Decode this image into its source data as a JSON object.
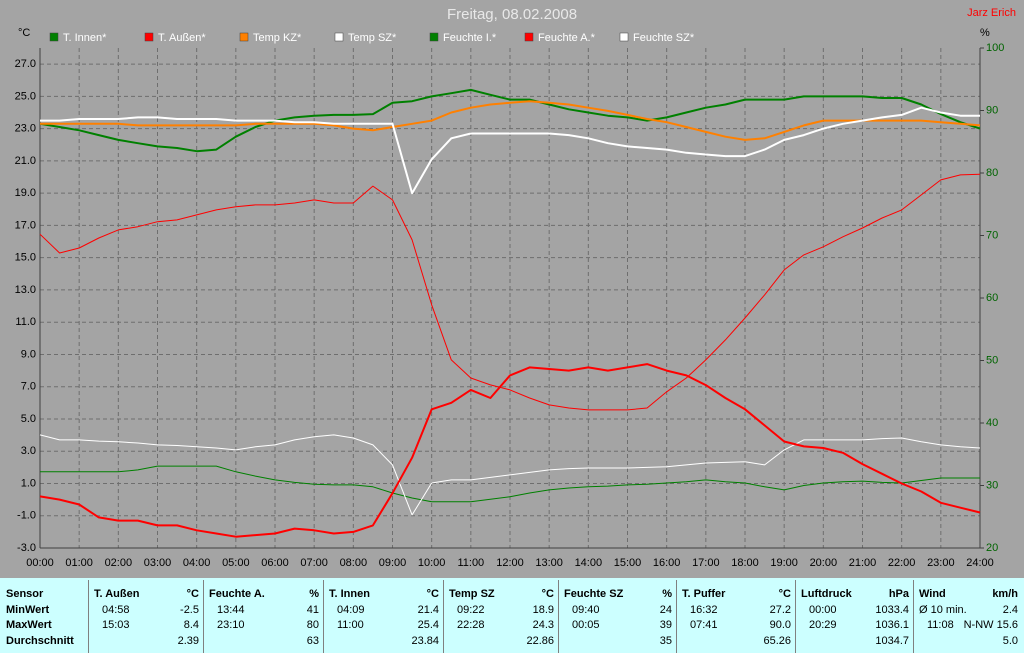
{
  "chart_data": {
    "type": "line",
    "title": "Freitag, 08.02.2008",
    "author": "Jarz Erich",
    "ylabel": "°C",
    "y2label": "%",
    "x": [
      0,
      0.5,
      1,
      1.5,
      2,
      2.5,
      3,
      3.5,
      4,
      4.5,
      5,
      5.5,
      6,
      6.5,
      7,
      7.5,
      8,
      8.5,
      9,
      9.5,
      10,
      10.5,
      11,
      11.5,
      12,
      12.5,
      13,
      13.5,
      14,
      14.5,
      15,
      15.5,
      16,
      16.5,
      17,
      17.5,
      18,
      18.5,
      19,
      19.5,
      20,
      20.5,
      21,
      21.5,
      22,
      22.5,
      23,
      23.5,
      24
    ],
    "xlim": [
      0,
      24
    ],
    "xticks": [
      {
        "value": 0,
        "label": "00:00"
      },
      {
        "value": 1,
        "label": "01:00"
      },
      {
        "value": 2,
        "label": "02:00"
      },
      {
        "value": 3,
        "label": "03:00"
      },
      {
        "value": 4,
        "label": "04:00"
      },
      {
        "value": 5,
        "label": "05:00"
      },
      {
        "value": 6,
        "label": "06:00"
      },
      {
        "value": 7,
        "label": "07:00"
      },
      {
        "value": 8,
        "label": "08:00"
      },
      {
        "value": 9,
        "label": "09:00"
      },
      {
        "value": 10,
        "label": "10:00"
      },
      {
        "value": 11,
        "label": "11:00"
      },
      {
        "value": 12,
        "label": "12:00"
      },
      {
        "value": 13,
        "label": "13:00"
      },
      {
        "value": 14,
        "label": "14:00"
      },
      {
        "value": 15,
        "label": "15:00"
      },
      {
        "value": 16,
        "label": "16:00"
      },
      {
        "value": 17,
        "label": "17:00"
      },
      {
        "value": 18,
        "label": "18:00"
      },
      {
        "value": 19,
        "label": "19:00"
      },
      {
        "value": 20,
        "label": "20:00"
      },
      {
        "value": 21,
        "label": "21:00"
      },
      {
        "value": 22,
        "label": "22:00"
      },
      {
        "value": 23,
        "label": "23:00"
      },
      {
        "value": 24,
        "label": "24:00"
      }
    ],
    "ylim": [
      -3,
      28
    ],
    "yticks": [
      {
        "value": -3,
        "label": "-3.0"
      },
      {
        "value": -1,
        "label": "-1.0"
      },
      {
        "value": 1,
        "label": "1.0"
      },
      {
        "value": 3,
        "label": "3.0"
      },
      {
        "value": 5,
        "label": "5.0"
      },
      {
        "value": 7,
        "label": "7.0"
      },
      {
        "value": 9,
        "label": "9.0"
      },
      {
        "value": 11,
        "label": "11.0"
      },
      {
        "value": 13,
        "label": "13.0"
      },
      {
        "value": 15,
        "label": "15.0"
      },
      {
        "value": 17,
        "label": "17.0"
      },
      {
        "value": 19,
        "label": "19.0"
      },
      {
        "value": 21,
        "label": "21.0"
      },
      {
        "value": 23,
        "label": "23.0"
      },
      {
        "value": 25,
        "label": "25.0"
      },
      {
        "value": 27,
        "label": "27.0"
      }
    ],
    "y2lim": [
      20,
      100
    ],
    "y2ticks": [
      20,
      30,
      40,
      50,
      60,
      70,
      80,
      90,
      100
    ],
    "grid": true,
    "series": [
      {
        "name": "T. Innen*",
        "color": "#008000",
        "line_width": 2,
        "values": [
          23.3,
          23.1,
          22.9,
          22.6,
          22.3,
          22.1,
          21.9,
          21.8,
          21.6,
          21.7,
          22.5,
          23.1,
          23.5,
          23.7,
          23.8,
          23.85,
          23.85,
          23.9,
          24.6,
          24.7,
          25.0,
          25.2,
          25.4,
          25.1,
          24.8,
          24.8,
          24.5,
          24.2,
          24.0,
          23.8,
          23.7,
          23.5,
          23.7,
          24.0,
          24.3,
          24.5,
          24.8,
          24.8,
          24.8,
          25.0,
          25.0,
          25.0,
          25.0,
          24.9,
          24.9,
          24.5,
          23.9,
          23.4,
          23.0
        ]
      },
      {
        "name": "T. Außen*",
        "color": "#ff0000",
        "line_width": 2,
        "values": [
          0.2,
          0.0,
          -0.3,
          -1.1,
          -1.3,
          -1.3,
          -1.6,
          -1.6,
          -1.9,
          -2.1,
          -2.3,
          -2.2,
          -2.1,
          -1.8,
          -1.9,
          -2.1,
          -2.0,
          -1.6,
          0.4,
          2.6,
          5.6,
          6.0,
          6.8,
          6.3,
          7.7,
          8.2,
          8.1,
          8.0,
          8.2,
          8.0,
          8.2,
          8.4,
          8.0,
          7.7,
          7.1,
          6.3,
          5.6,
          4.6,
          3.6,
          3.3,
          3.2,
          2.9,
          2.2,
          1.6,
          1.0,
          0.5,
          -0.2,
          -0.5,
          -0.8
        ]
      },
      {
        "name": "Temp KZ*",
        "color": "#ff8000",
        "line_width": 2,
        "values": [
          23.3,
          23.3,
          23.3,
          23.3,
          23.3,
          23.2,
          23.2,
          23.2,
          23.2,
          23.2,
          23.2,
          23.3,
          23.3,
          23.3,
          23.3,
          23.2,
          23.0,
          22.9,
          23.1,
          23.3,
          23.5,
          24.0,
          24.3,
          24.5,
          24.6,
          24.7,
          24.6,
          24.5,
          24.3,
          24.1,
          23.85,
          23.6,
          23.4,
          23.1,
          22.8,
          22.5,
          22.3,
          22.4,
          22.8,
          23.2,
          23.5,
          23.5,
          23.5,
          23.5,
          23.5,
          23.5,
          23.4,
          23.3,
          23.2
        ]
      },
      {
        "name": "Temp SZ*",
        "color": "#ffffff",
        "line_width": 2,
        "values": [
          23.5,
          23.5,
          23.6,
          23.6,
          23.6,
          23.7,
          23.7,
          23.6,
          23.6,
          23.6,
          23.5,
          23.5,
          23.5,
          23.4,
          23.4,
          23.3,
          23.3,
          23.3,
          23.3,
          19.0,
          21.1,
          22.4,
          22.7,
          22.7,
          22.7,
          22.7,
          22.7,
          22.6,
          22.4,
          22.1,
          21.9,
          21.8,
          21.7,
          21.5,
          21.4,
          21.3,
          21.3,
          21.7,
          22.3,
          22.6,
          23.0,
          23.3,
          23.5,
          23.7,
          23.85,
          24.3,
          24.0,
          23.8,
          23.8
        ]
      },
      {
        "name": "Feuchte I.*",
        "color": "#008000",
        "line_width": 1,
        "axis": "y2",
        "values": [
          32.2,
          32.2,
          32.2,
          32.2,
          32.2,
          32.5,
          33.1,
          33.1,
          33.1,
          33.1,
          32.2,
          31.5,
          30.9,
          30.5,
          30.2,
          30.1,
          30.1,
          29.8,
          28.8,
          28.0,
          27.4,
          27.4,
          27.4,
          27.8,
          28.2,
          28.8,
          29.3,
          29.6,
          29.8,
          29.9,
          30.1,
          30.2,
          30.4,
          30.6,
          30.9,
          30.6,
          30.4,
          29.8,
          29.3,
          30.0,
          30.4,
          30.6,
          30.7,
          30.5,
          30.4,
          30.8,
          31.2,
          31.2,
          31.2
        ]
      },
      {
        "name": "Feuchte A.*",
        "color": "#ff0000",
        "line_width": 1,
        "axis": "y2",
        "values": [
          70.2,
          67.2,
          68.0,
          69.6,
          70.9,
          71.4,
          72.2,
          72.5,
          73.3,
          74.1,
          74.6,
          74.9,
          74.9,
          75.2,
          75.7,
          75.2,
          75.2,
          77.9,
          75.7,
          69.3,
          58.9,
          50.1,
          47.2,
          46.1,
          45.3,
          44.0,
          42.9,
          42.4,
          42.1,
          42.1,
          42.1,
          42.4,
          45.0,
          47.2,
          50.1,
          53.3,
          56.8,
          60.5,
          64.5,
          66.9,
          68.2,
          69.8,
          71.2,
          72.8,
          74.1,
          76.5,
          78.9,
          79.7,
          79.8
        ]
      },
      {
        "name": "Feuchte SZ*",
        "color": "#ffffff",
        "line_width": 1,
        "axis": "y2",
        "values": [
          38.1,
          37.3,
          37.3,
          37.1,
          37.0,
          36.8,
          36.5,
          36.4,
          36.2,
          36.0,
          35.7,
          36.2,
          36.5,
          37.3,
          37.8,
          38.1,
          37.6,
          36.5,
          33.3,
          25.3,
          30.4,
          30.9,
          30.9,
          31.3,
          31.7,
          32.1,
          32.5,
          32.7,
          32.8,
          32.8,
          32.8,
          32.9,
          33.0,
          33.3,
          33.6,
          33.7,
          33.8,
          33.3,
          35.7,
          37.3,
          37.3,
          37.3,
          37.3,
          37.5,
          37.6,
          37.0,
          36.5,
          36.2,
          36.0
        ]
      }
    ]
  },
  "stats": {
    "row_labels": [
      "Sensor",
      "MinWert",
      "MaxWert",
      "Durchschnitt"
    ],
    "columns": [
      {
        "name": "T. Außen",
        "unit": "°C",
        "min_time": "04:58",
        "min": "-2.5",
        "max_time": "15:03",
        "max": "8.4",
        "avg": "2.39"
      },
      {
        "name": "Feuchte A.",
        "unit": "%",
        "min_time": "13:44",
        "min": "41",
        "max_time": "23:10",
        "max": "80",
        "avg": "63"
      },
      {
        "name": "T. Innen",
        "unit": "°C",
        "min_time": "04:09",
        "min": "21.4",
        "max_time": "11:00",
        "max": "25.4",
        "avg": "23.84"
      },
      {
        "name": "Temp SZ",
        "unit": "°C",
        "min_time": "09:22",
        "min": "18.9",
        "max_time": "22:28",
        "max": "24.3",
        "avg": "22.86"
      },
      {
        "name": "Feuchte SZ",
        "unit": "%",
        "min_time": "09:40",
        "min": "24",
        "max_time": "00:05",
        "max": "39",
        "avg": "35"
      },
      {
        "name": "T. Puffer",
        "unit": "°C",
        "min_time": "16:32",
        "min": "27.2",
        "max_time": "07:41",
        "max": "90.0",
        "avg": "65.26"
      },
      {
        "name": "Luftdruck",
        "unit": "hPa",
        "min_time": "00:00",
        "min": "1033.4",
        "max_time": "20:29",
        "max": "1036.1",
        "avg": "1034.7"
      },
      {
        "name": "Wind",
        "unit": "km/h",
        "min_time": "Ø 10 min.",
        "min": "2.4",
        "max_time": "11:08",
        "max": "N-NW 15.6",
        "avg": "5.0"
      }
    ]
  }
}
